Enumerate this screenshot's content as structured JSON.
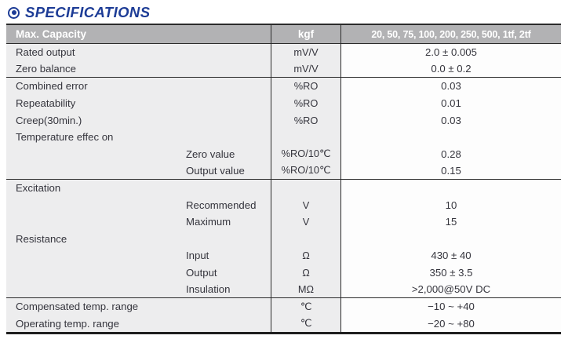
{
  "page": {
    "title": "SPECIFICATIONS"
  },
  "colors": {
    "accent_blue": "#1d3c96",
    "header_bg": "#b2b2b4",
    "body_bg": "#ededee",
    "value_bg": "#fdfdfd",
    "line": "#2b2b2b"
  },
  "table": {
    "header": {
      "col1": "Max. Capacity",
      "col2": "kgf",
      "col3": "20, 50, 75, 100, 200, 250, 500, 1tf, 2tf"
    },
    "rows": [
      {
        "label": "Rated output",
        "indent": false,
        "unit": "mV/V",
        "value": "2.0 ± 0.005",
        "section_end": false
      },
      {
        "label": "Zero balance",
        "indent": false,
        "unit": "mV/V",
        "value": "0.0 ± 0.2",
        "section_end": true
      },
      {
        "label": "Combined error",
        "indent": false,
        "unit": "%RO",
        "value": "0.03",
        "section_end": false
      },
      {
        "label": "Repeatability",
        "indent": false,
        "unit": "%RO",
        "value": "0.01",
        "section_end": false
      },
      {
        "label": "Creep(30min.)",
        "indent": false,
        "unit": "%RO",
        "value": "0.03",
        "section_end": false
      },
      {
        "label": "Temperature effec on",
        "indent": false,
        "unit": "",
        "value": "",
        "section_end": false
      },
      {
        "label": "Zero value",
        "indent": true,
        "unit": "%RO/10℃",
        "value": "0.28",
        "section_end": false
      },
      {
        "label": "Output value",
        "indent": true,
        "unit": "%RO/10℃",
        "value": "0.15",
        "section_end": true
      },
      {
        "label": "Excitation",
        "indent": false,
        "unit": "",
        "value": "",
        "section_end": false
      },
      {
        "label": "Recommended",
        "indent": true,
        "unit": "V",
        "value": "10",
        "section_end": false
      },
      {
        "label": "Maximum",
        "indent": true,
        "unit": "V",
        "value": "15",
        "section_end": false
      },
      {
        "label": "Resistance",
        "indent": false,
        "unit": "",
        "value": "",
        "section_end": false
      },
      {
        "label": "Input",
        "indent": true,
        "unit": "Ω",
        "value": "430 ± 40",
        "section_end": false
      },
      {
        "label": "Output",
        "indent": true,
        "unit": "Ω",
        "value": "350 ± 3.5",
        "section_end": false
      },
      {
        "label": "Insulation",
        "indent": true,
        "unit": "MΩ",
        "value": ">2,000@50V DC",
        "section_end": true
      },
      {
        "label": "Compensated temp. range",
        "indent": false,
        "unit": "℃",
        "value": "−10 ~ +40",
        "section_end": false
      },
      {
        "label": "Operating temp. range",
        "indent": false,
        "unit": "℃",
        "value": "−20 ~ +80",
        "section_end": false
      }
    ]
  }
}
